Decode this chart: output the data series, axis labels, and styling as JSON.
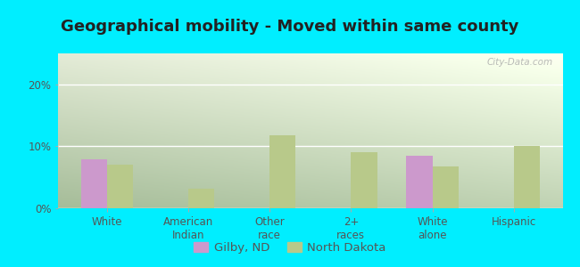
{
  "title": "Geographical mobility - Moved within same county",
  "categories": [
    "White",
    "American\nIndian",
    "Other\nrace",
    "2+\nraces",
    "White\nalone",
    "Hispanic"
  ],
  "gilby_values": [
    7.9,
    0,
    0,
    0,
    8.5,
    0
  ],
  "nd_values": [
    7.0,
    3.2,
    11.8,
    9.0,
    6.8,
    10.0
  ],
  "gilby_color": "#cc99cc",
  "nd_color": "#b8c98a",
  "outer_bg": "#00eeff",
  "plot_bg_color": "#d8f0d8",
  "ylim": [
    0,
    25
  ],
  "yticks": [
    0,
    10,
    20
  ],
  "ytick_labels": [
    "0%",
    "10%",
    "20%"
  ],
  "bar_width": 0.32,
  "legend_gilby": "Gilby, ND",
  "legend_nd": "North Dakota",
  "title_fontsize": 13,
  "tick_fontsize": 8.5,
  "legend_fontsize": 9.5,
  "watermark": "City-Data.com"
}
